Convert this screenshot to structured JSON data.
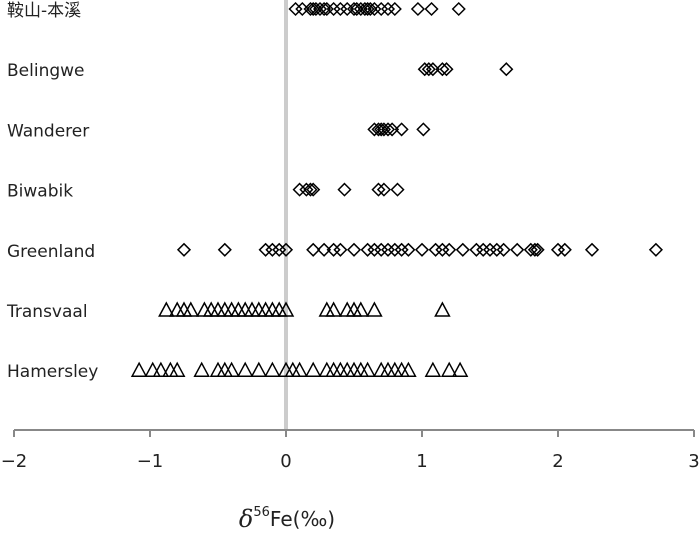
{
  "chart_data": {
    "type": "strip",
    "xlabel": {
      "symbol": "δ",
      "superscript": "56",
      "text": "Fe(‰)"
    },
    "xlim": [
      -2,
      3
    ],
    "xticks": [
      {
        "value": -2,
        "label": "−2"
      },
      {
        "value": -1,
        "label": "−1"
      },
      0,
      1,
      2,
      3
    ],
    "vline": 0,
    "color": "#000000",
    "series": [
      {
        "name": "鞍山-本溪",
        "marker": "diamond",
        "values": [
          0.07,
          0.12,
          0.18,
          0.2,
          0.22,
          0.25,
          0.28,
          0.3,
          0.35,
          0.4,
          0.45,
          0.5,
          0.52,
          0.55,
          0.58,
          0.6,
          0.62,
          0.65,
          0.7,
          0.75,
          0.8,
          0.97,
          1.07,
          1.27
        ]
      },
      {
        "name": "Belingwe",
        "marker": "diamond",
        "values": [
          1.02,
          1.05,
          1.08,
          1.15,
          1.18,
          1.62
        ]
      },
      {
        "name": "Wanderer",
        "marker": "diamond",
        "values": [
          0.65,
          0.68,
          0.7,
          0.72,
          0.75,
          0.78,
          0.85,
          1.01
        ]
      },
      {
        "name": "Biwabik",
        "marker": "diamond",
        "values": [
          0.1,
          0.15,
          0.18,
          0.2,
          0.43,
          0.68,
          0.72,
          0.82
        ]
      },
      {
        "name": "Greenland",
        "marker": "diamond",
        "values": [
          -0.75,
          -0.45,
          -0.15,
          -0.1,
          -0.05,
          0.0,
          0.2,
          0.28,
          0.35,
          0.4,
          0.5,
          0.6,
          0.65,
          0.7,
          0.75,
          0.8,
          0.85,
          0.9,
          1.0,
          1.1,
          1.15,
          1.2,
          1.3,
          1.4,
          1.45,
          1.5,
          1.55,
          1.6,
          1.7,
          1.8,
          1.83,
          1.85,
          2.0,
          2.05,
          2.25,
          2.72
        ]
      },
      {
        "name": "Transvaal",
        "marker": "triangle",
        "values": [
          -0.88,
          -0.8,
          -0.75,
          -0.7,
          -0.6,
          -0.55,
          -0.5,
          -0.45,
          -0.4,
          -0.35,
          -0.3,
          -0.25,
          -0.2,
          -0.15,
          -0.1,
          -0.05,
          0.0,
          0.3,
          0.35,
          0.45,
          0.5,
          0.55,
          0.65,
          1.15
        ]
      },
      {
        "name": "Hamersley",
        "marker": "triangle",
        "values": [
          -1.08,
          -0.98,
          -0.92,
          -0.85,
          -0.8,
          -0.62,
          -0.5,
          -0.45,
          -0.4,
          -0.3,
          -0.2,
          -0.1,
          0.0,
          0.05,
          0.1,
          0.2,
          0.3,
          0.35,
          0.4,
          0.45,
          0.5,
          0.55,
          0.6,
          0.7,
          0.75,
          0.8,
          0.85,
          0.9,
          1.08,
          1.2,
          1.28
        ]
      }
    ]
  }
}
